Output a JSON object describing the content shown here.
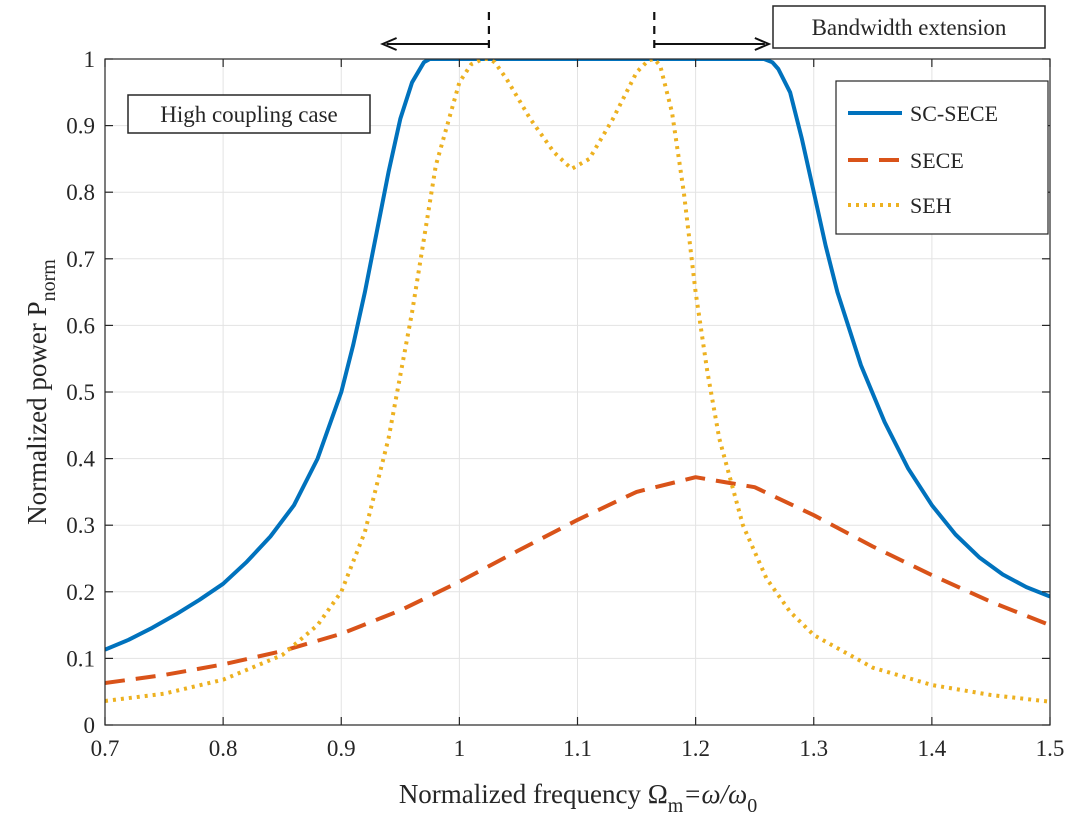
{
  "chart_data": {
    "type": "line",
    "xlabel": "Normalized frequency Ω",
    "xlabel_sub": "m",
    "xlabel_tail": "=ω/ω",
    "xlabel_tail_sub": "0",
    "ylabel": "Normalized power P",
    "ylabel_sub": "norm",
    "xlim": [
      0.7,
      1.5
    ],
    "ylim": [
      0,
      1
    ],
    "xticks": [
      0.7,
      0.8,
      0.9,
      1.0,
      1.1,
      1.2,
      1.3,
      1.4,
      1.5
    ],
    "xtick_labels": [
      "0.7",
      "0.8",
      "0.9",
      "1",
      "1.1",
      "1.2",
      "1.3",
      "1.4",
      "1.5"
    ],
    "yticks": [
      0,
      0.1,
      0.2,
      0.3,
      0.4,
      0.5,
      0.6,
      0.7,
      0.8,
      0.9,
      1.0
    ],
    "ytick_labels": [
      "0",
      "0.1",
      "0.2",
      "0.3",
      "0.4",
      "0.5",
      "0.6",
      "0.7",
      "0.8",
      "0.9",
      "1"
    ],
    "grid": true,
    "legend_position": "top-right",
    "series": [
      {
        "name": "SC-SECE",
        "color": "#0072BD",
        "style": "solid",
        "x": [
          0.7,
          0.72,
          0.74,
          0.76,
          0.78,
          0.8,
          0.82,
          0.84,
          0.86,
          0.88,
          0.9,
          0.91,
          0.92,
          0.93,
          0.94,
          0.95,
          0.96,
          0.97,
          0.975,
          0.98,
          1.0,
          1.05,
          1.1,
          1.15,
          1.2,
          1.25,
          1.258,
          1.265,
          1.27,
          1.28,
          1.29,
          1.3,
          1.31,
          1.32,
          1.34,
          1.36,
          1.38,
          1.4,
          1.42,
          1.44,
          1.46,
          1.48,
          1.5
        ],
        "y": [
          0.113,
          0.128,
          0.146,
          0.166,
          0.188,
          0.212,
          0.245,
          0.283,
          0.33,
          0.4,
          0.5,
          0.57,
          0.65,
          0.74,
          0.83,
          0.91,
          0.965,
          0.995,
          1.0,
          1.0,
          1.0,
          1.0,
          1.0,
          1.0,
          1.0,
          1.0,
          1.0,
          0.995,
          0.985,
          0.95,
          0.88,
          0.8,
          0.72,
          0.65,
          0.54,
          0.455,
          0.385,
          0.33,
          0.286,
          0.252,
          0.226,
          0.207,
          0.193
        ]
      },
      {
        "name": "SECE",
        "color": "#D95319",
        "style": "dashed",
        "x": [
          0.7,
          0.75,
          0.8,
          0.85,
          0.9,
          0.95,
          1.0,
          1.05,
          1.1,
          1.15,
          1.2,
          1.25,
          1.3,
          1.35,
          1.4,
          1.45,
          1.5
        ],
        "y": [
          0.063,
          0.075,
          0.091,
          0.111,
          0.137,
          0.172,
          0.215,
          0.262,
          0.308,
          0.35,
          0.372,
          0.357,
          0.315,
          0.268,
          0.225,
          0.185,
          0.15
        ]
      },
      {
        "name": "SEH",
        "color": "#EDB120",
        "style": "dotted",
        "x": [
          0.7,
          0.75,
          0.8,
          0.85,
          0.88,
          0.9,
          0.92,
          0.94,
          0.96,
          0.98,
          1.0,
          1.01,
          1.02,
          1.025,
          1.03,
          1.04,
          1.06,
          1.08,
          1.095,
          1.11,
          1.13,
          1.15,
          1.16,
          1.165,
          1.17,
          1.18,
          1.19,
          1.2,
          1.21,
          1.22,
          1.24,
          1.26,
          1.28,
          1.3,
          1.35,
          1.4,
          1.45,
          1.5
        ],
        "y": [
          0.036,
          0.047,
          0.068,
          0.105,
          0.15,
          0.2,
          0.29,
          0.43,
          0.62,
          0.84,
          0.965,
          0.992,
          1.0,
          1.0,
          0.995,
          0.97,
          0.91,
          0.86,
          0.835,
          0.85,
          0.91,
          0.98,
          0.998,
          1.0,
          0.99,
          0.92,
          0.8,
          0.65,
          0.53,
          0.43,
          0.3,
          0.22,
          0.17,
          0.135,
          0.086,
          0.06,
          0.045,
          0.035
        ]
      }
    ],
    "annotations": {
      "high_coupling": "High coupling case",
      "bandwidth": "Bandwidth extension",
      "marker_left_x": 1.025,
      "marker_right_x": 1.165,
      "arrow_left_to_x": 0.935,
      "arrow_right_to_x": 1.262
    }
  }
}
